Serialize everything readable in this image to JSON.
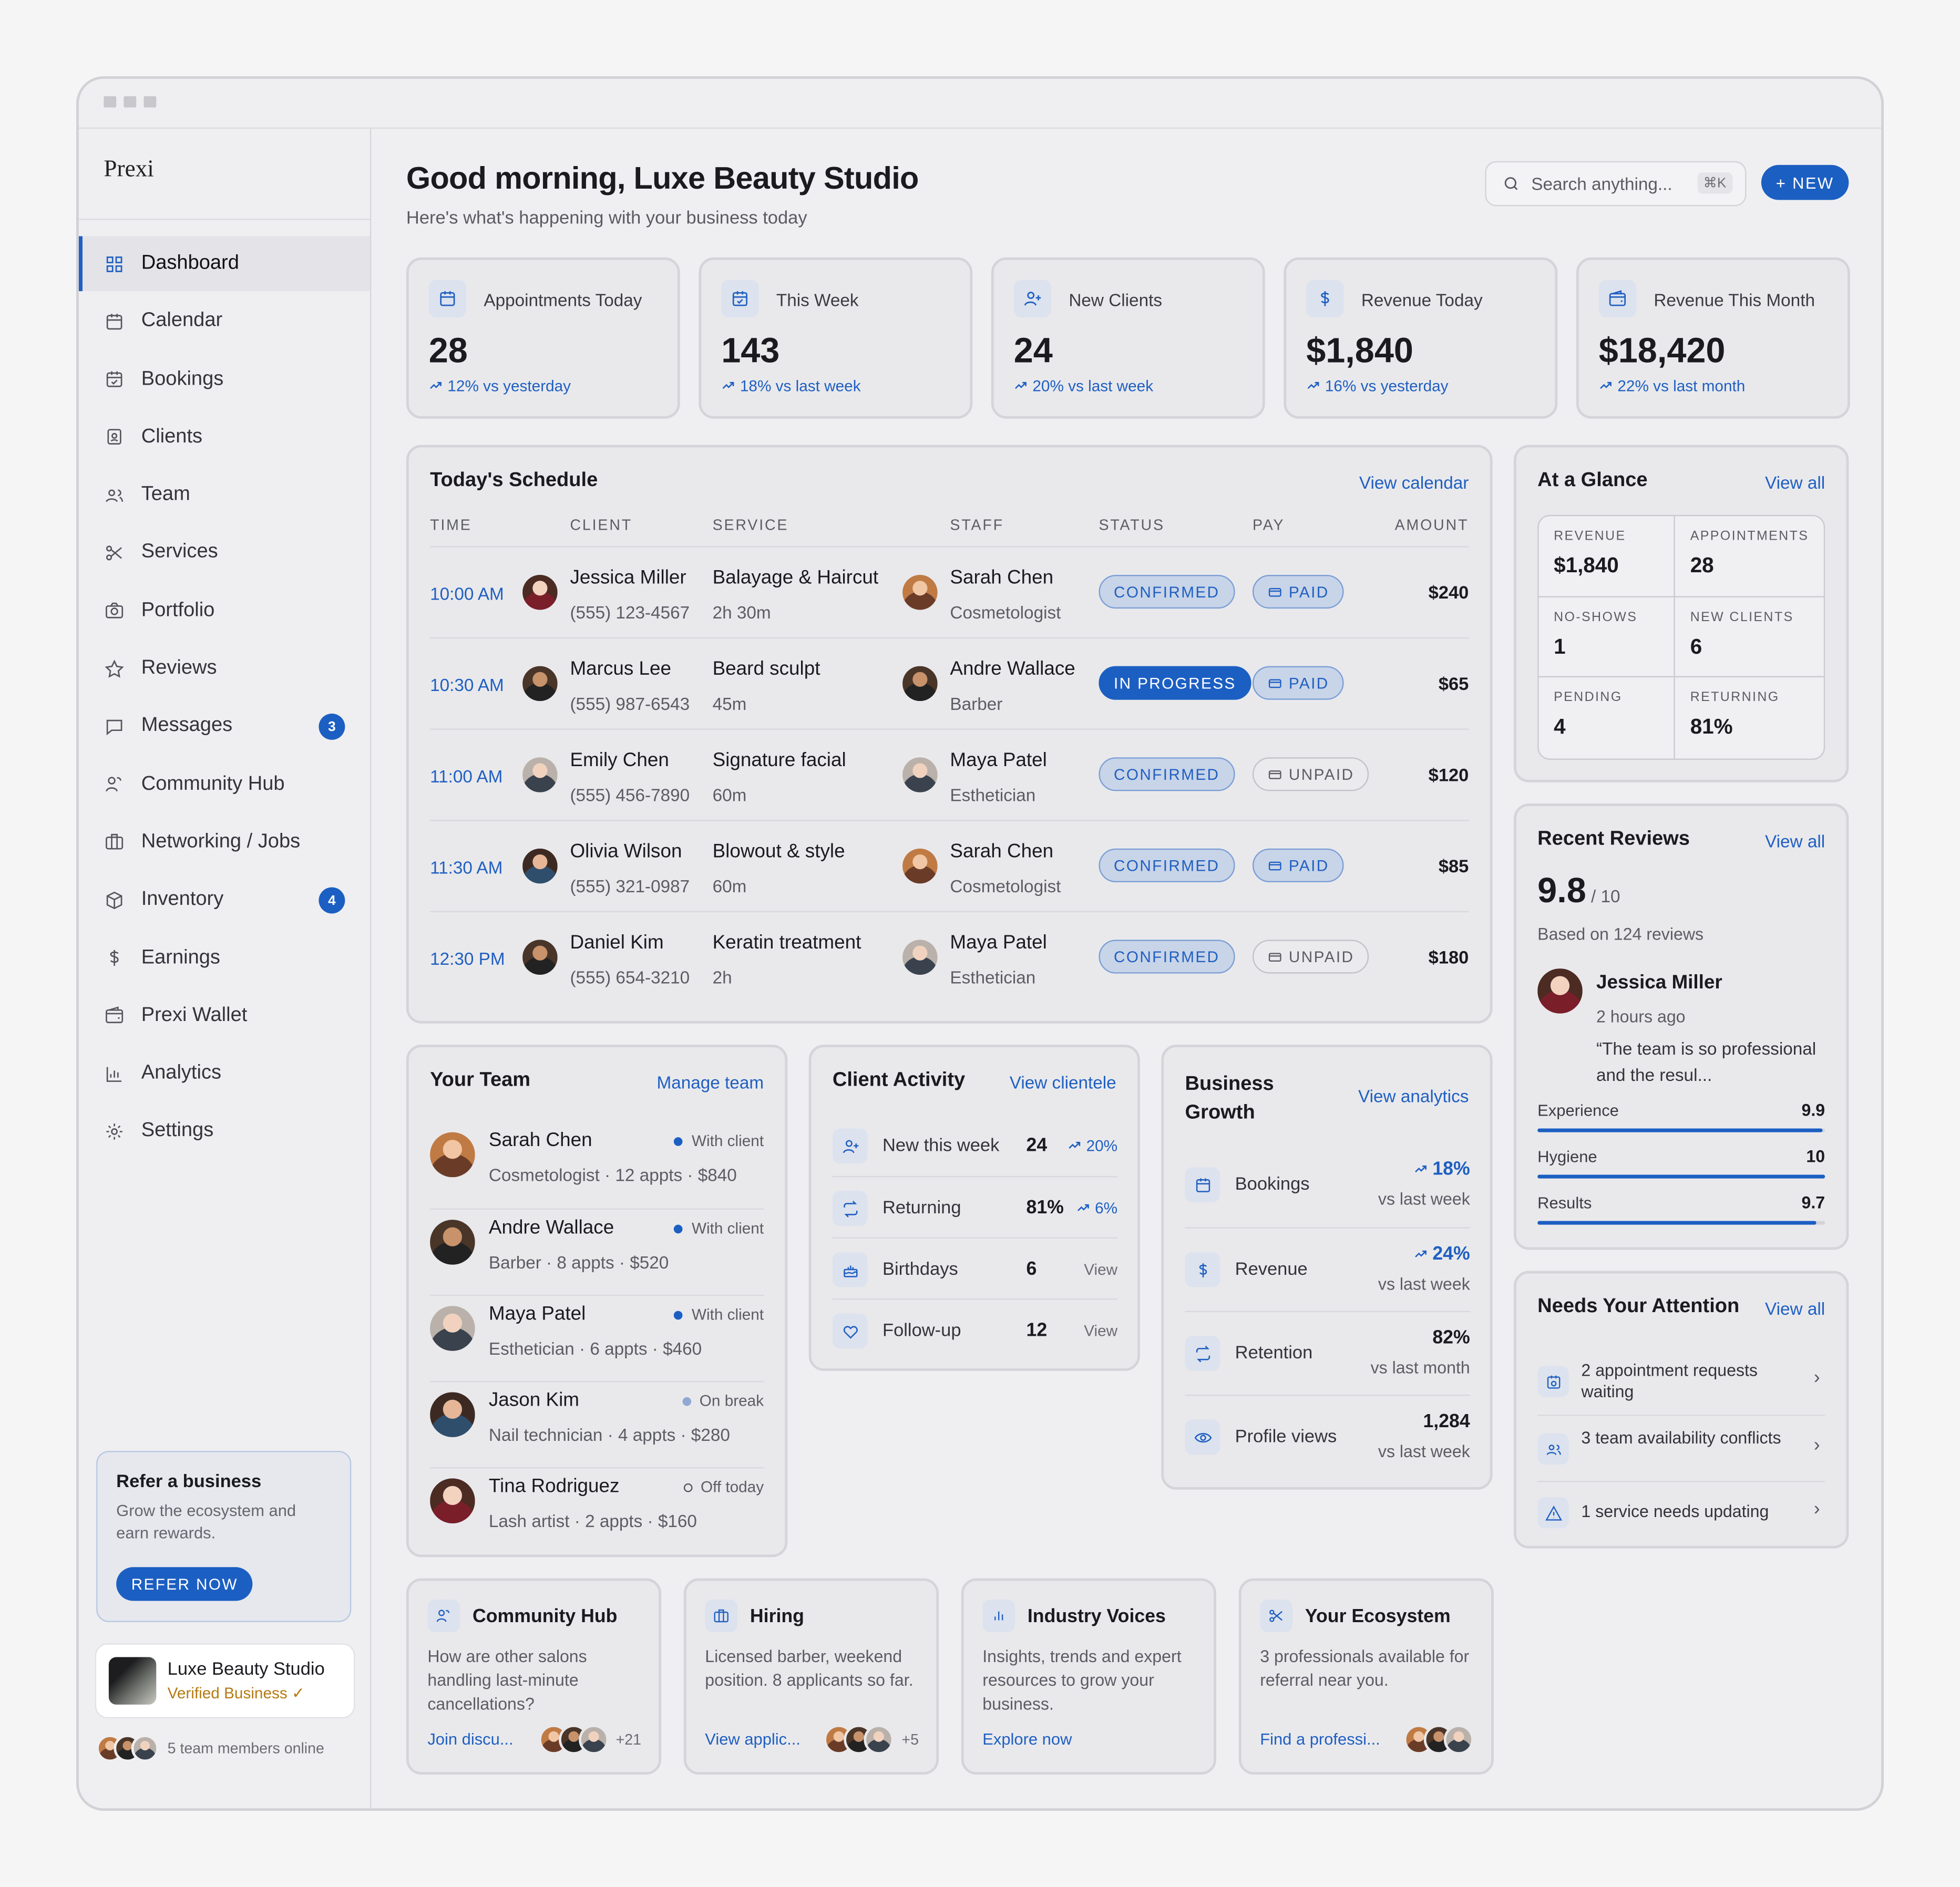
{
  "app": {
    "name": "Prexi"
  },
  "sidebar": {
    "items": [
      {
        "label": "Dashboard",
        "icon": "grid-icon",
        "active": true
      },
      {
        "label": "Calendar",
        "icon": "calendar-icon"
      },
      {
        "label": "Bookings",
        "icon": "calendar-check-icon"
      },
      {
        "label": "Clients",
        "icon": "contact-icon"
      },
      {
        "label": "Team",
        "icon": "users-icon"
      },
      {
        "label": "Services",
        "icon": "scissors-icon"
      },
      {
        "label": "Portfolio",
        "icon": "camera-icon"
      },
      {
        "label": "Reviews",
        "icon": "star-icon"
      },
      {
        "label": "Messages",
        "icon": "chat-icon",
        "badge": "3"
      },
      {
        "label": "Community Hub",
        "icon": "community-icon"
      },
      {
        "label": "Networking / Jobs",
        "icon": "briefcase-icon"
      },
      {
        "label": "Inventory",
        "icon": "box-icon",
        "badge": "4"
      },
      {
        "label": "Earnings",
        "icon": "dollar-icon"
      },
      {
        "label": "Prexi Wallet",
        "icon": "wallet-icon"
      },
      {
        "label": "Analytics",
        "icon": "chart-icon"
      },
      {
        "label": "Settings",
        "icon": "gear-icon"
      }
    ],
    "refer": {
      "title": "Refer a business",
      "text": "Grow the ecosystem and earn rewards.",
      "button": "REFER NOW"
    },
    "business": {
      "name": "Luxe Beauty Studio",
      "status": "Verified Business ✓"
    },
    "online": "5 team members online"
  },
  "header": {
    "greeting": "Good morning, Luxe Beauty Studio",
    "subtitle": "Here's what's happening with your business today",
    "search_placeholder": "Search anything...",
    "search_shortcut": "⌘K",
    "new_button": "+  NEW"
  },
  "stats": [
    {
      "label": "Appointments Today",
      "value": "28",
      "trend": "12% vs yesterday",
      "icon": "calendar-icon"
    },
    {
      "label": "This Week",
      "value": "143",
      "trend": "18% vs last week",
      "icon": "calendar-check-icon"
    },
    {
      "label": "New Clients",
      "value": "24",
      "trend": "20% vs last week",
      "icon": "user-plus-icon"
    },
    {
      "label": "Revenue Today",
      "value": "$1,840",
      "trend": "16% vs yesterday",
      "icon": "dollar-icon"
    },
    {
      "label": "Revenue This Month",
      "value": "$18,420",
      "trend": "22% vs last month",
      "icon": "wallet-icon"
    }
  ],
  "schedule": {
    "title": "Today's Schedule",
    "link": "View calendar",
    "columns": [
      "TIME",
      "CLIENT",
      "SERVICE",
      "STAFF",
      "STATUS",
      "PAY",
      "AMOUNT"
    ],
    "rows": [
      {
        "time": "10:00 AM",
        "client": "Jessica Miller",
        "phone": "(555) 123-4567",
        "service": "Balayage & Haircut",
        "duration": "2h 30m",
        "staff": "Sarah Chen",
        "role": "Cosmetologist",
        "status": "CONFIRMED",
        "pay": "PAID",
        "amount": "$240"
      },
      {
        "time": "10:30 AM",
        "client": "Marcus Lee",
        "phone": "(555) 987-6543",
        "service": "Beard sculpt",
        "duration": "45m",
        "staff": "Andre Wallace",
        "role": "Barber",
        "status": "IN PROGRESS",
        "pay": "PAID",
        "amount": "$65"
      },
      {
        "time": "11:00 AM",
        "client": "Emily Chen",
        "phone": "(555) 456-7890",
        "service": "Signature facial",
        "duration": "60m",
        "staff": "Maya Patel",
        "role": "Esthetician",
        "status": "CONFIRMED",
        "pay": "UNPAID",
        "amount": "$120"
      },
      {
        "time": "11:30 AM",
        "client": "Olivia Wilson",
        "phone": "(555) 321-0987",
        "service": "Blowout & style",
        "duration": "60m",
        "staff": "Sarah Chen",
        "role": "Cosmetologist",
        "status": "CONFIRMED",
        "pay": "PAID",
        "amount": "$85"
      },
      {
        "time": "12:30 PM",
        "client": "Daniel Kim",
        "phone": "(555) 654-3210",
        "service": "Keratin treatment",
        "duration": "2h",
        "staff": "Maya Patel",
        "role": "Esthetician",
        "status": "CONFIRMED",
        "pay": "UNPAID",
        "amount": "$180"
      }
    ]
  },
  "glance": {
    "title": "At a Glance",
    "link": "View all",
    "cells": [
      {
        "label": "REVENUE",
        "value": "$1,840"
      },
      {
        "label": "APPOINTMENTS",
        "value": "28"
      },
      {
        "label": "NO-SHOWS",
        "value": "1"
      },
      {
        "label": "NEW CLIENTS",
        "value": "6"
      },
      {
        "label": "PENDING",
        "value": "4"
      },
      {
        "label": "RETURNING",
        "value": "81%"
      }
    ]
  },
  "reviews": {
    "title": "Recent Reviews",
    "link": "View all",
    "score": "9.8",
    "out_of": " / 10",
    "based": "Based on 124 reviews",
    "reviewer": "Jessica Miller",
    "time": "2 hours ago",
    "quote": "“The team is so professional and the resul...",
    "bars": [
      {
        "label": "Experience",
        "value": "9.9",
        "fraction": 0.99
      },
      {
        "label": "Hygiene",
        "value": "10",
        "fraction": 1.0
      },
      {
        "label": "Results",
        "value": "9.7",
        "fraction": 0.97
      }
    ]
  },
  "attention": {
    "title": "Needs Your Attention",
    "link": "View all",
    "items": [
      {
        "text": "2 appointment requests waiting",
        "icon": "calendar-clock-icon"
      },
      {
        "text": "3 team availability conflicts",
        "icon": "users-icon"
      },
      {
        "text": "1 service needs updating",
        "icon": "warning-icon"
      }
    ]
  },
  "team": {
    "title": "Your Team",
    "link": "Manage team",
    "members": [
      {
        "name": "Sarah Chen",
        "info": "Cosmetologist · 12 appts · $840",
        "status": "With client"
      },
      {
        "name": "Andre Wallace",
        "info": "Barber · 8 appts · $520",
        "status": "With client"
      },
      {
        "name": "Maya Patel",
        "info": "Esthetician · 6 appts · $460",
        "status": "With client"
      },
      {
        "name": "Jason Kim",
        "info": "Nail technician · 4 appts · $280",
        "status": "On break"
      },
      {
        "name": "Tina Rodriguez",
        "info": "Lash artist · 2 appts · $160",
        "status": "Off today"
      }
    ]
  },
  "activity": {
    "title": "Client Activity",
    "link": "View clientele",
    "items": [
      {
        "label": "New this week",
        "value": "24",
        "extra": "20%",
        "icon": "user-plus-icon"
      },
      {
        "label": "Returning",
        "value": "81%",
        "extra": "6%",
        "icon": "repeat-icon"
      },
      {
        "label": "Birthdays",
        "value": "6",
        "extra": "View",
        "icon": "cake-icon"
      },
      {
        "label": "Follow-up",
        "value": "12",
        "extra": "View",
        "icon": "heart-icon"
      }
    ]
  },
  "growth": {
    "title": "Business Growth",
    "link": "View analytics",
    "items": [
      {
        "label": "Bookings",
        "value": "18%",
        "sub": "vs last week",
        "icon": "calendar-icon"
      },
      {
        "label": "Revenue",
        "value": "24%",
        "sub": "vs last week",
        "icon": "dollar-icon"
      },
      {
        "label": "Retention",
        "value": "82%",
        "sub": "vs last month",
        "icon": "repeat-icon"
      },
      {
        "label": "Profile views",
        "value": "1,284",
        "sub": "vs last week",
        "icon": "eye-icon"
      }
    ]
  },
  "bottom": [
    {
      "title": "Community Hub",
      "text": "How are other salons handling last-minute cancellations?",
      "link": "Join discu...",
      "count": "+21",
      "icon": "community-icon"
    },
    {
      "title": "Hiring",
      "text": "Licensed barber, weekend position. 8 applicants so far.",
      "link": "View applic...",
      "count": "+5",
      "icon": "briefcase-icon"
    },
    {
      "title": "Industry Voices",
      "text": "Insights, trends and expert resources to grow your business.",
      "link": "Explore now",
      "count": "",
      "icon": "bar-chart-icon"
    },
    {
      "title": "Your Ecosystem",
      "text": "3 professionals available for referral near you.",
      "link": "Find a professi...",
      "count": "",
      "icon": "scissors-icon"
    }
  ]
}
